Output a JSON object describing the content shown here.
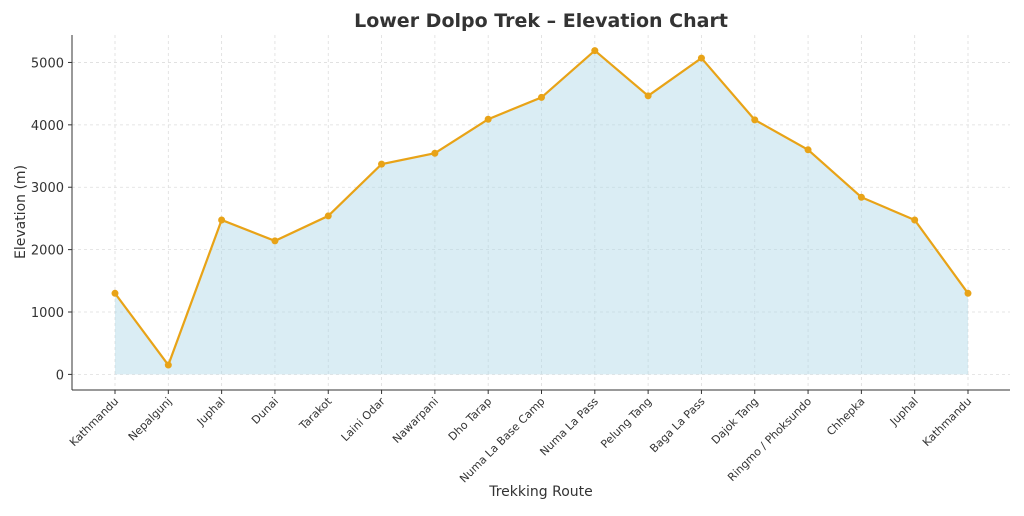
{
  "chart_data": {
    "type": "area",
    "title": "Lower Dolpo Trek – Elevation Chart",
    "xlabel": "Trekking Route",
    "ylabel": "Elevation (m)",
    "categories": [
      "Kathmandu",
      "Nepalgunj",
      "Juphal",
      "Dunai",
      "Tarakot",
      "Laini Odar",
      "Nawarpani",
      "Dho Tarap",
      "Numa La Base Camp",
      "Numa La Pass",
      "Pelung Tang",
      "Baga La Pass",
      "Dajok Tang",
      "Ringmo / Phoksundo",
      "Chhepka",
      "Juphal",
      "Kathmandu"
    ],
    "series": [
      {
        "name": "Elevation",
        "values": [
          1300,
          150,
          2475,
          2140,
          2540,
          3370,
          3545,
          4090,
          4440,
          5190,
          4465,
          5070,
          4080,
          3600,
          2840,
          2475,
          1300
        ]
      }
    ],
    "yticks": [
      0,
      1000,
      2000,
      3000,
      4000,
      5000
    ],
    "ylim": [
      -250,
      5440
    ],
    "grid": true,
    "colors": {
      "line": "#e8a317",
      "fill": "#add8e6",
      "text": "#333333"
    }
  }
}
